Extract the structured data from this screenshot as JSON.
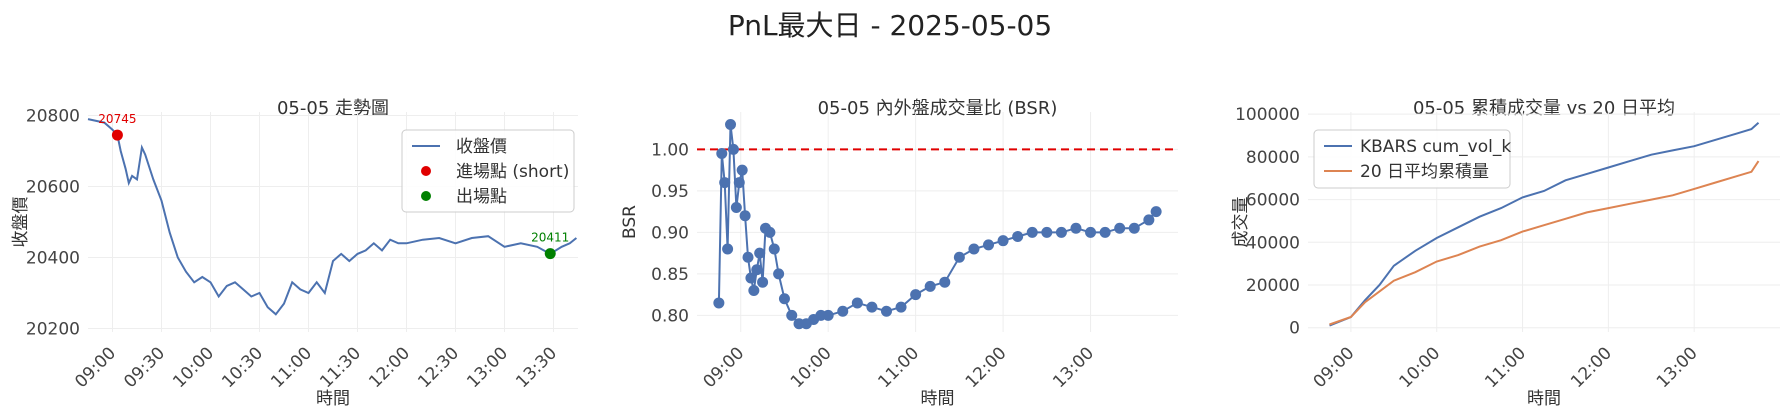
{
  "suptitle": "PnL最大日 - 2025-05-05",
  "colors": {
    "blue": "#4c72b0",
    "orange": "#dd8452",
    "red": "#e00000",
    "green": "#008000"
  },
  "chart_data": [
    {
      "type": "line",
      "title": "05-05 走勢圖",
      "xlabel": "時間",
      "ylabel": "收盤價",
      "x_range": [
        "08:45",
        "13:45"
      ],
      "ylim": [
        20190,
        20810
      ],
      "xticks": [
        "09:00",
        "09:30",
        "10:00",
        "10:30",
        "11:00",
        "11:30",
        "12:00",
        "12:30",
        "13:00",
        "13:30"
      ],
      "yticks": [
        20200,
        20400,
        20600,
        20800
      ],
      "legend": {
        "position": "top-right",
        "entries": [
          "收盤價",
          "進場點 (short)",
          "出場點"
        ]
      },
      "series": [
        {
          "name": "收盤價",
          "x": [
            "08:45",
            "08:50",
            "08:55",
            "09:00",
            "09:03",
            "09:05",
            "09:08",
            "09:10",
            "09:12",
            "09:15",
            "09:18",
            "09:20",
            "09:25",
            "09:30",
            "09:35",
            "09:40",
            "09:45",
            "09:50",
            "09:55",
            "10:00",
            "10:05",
            "10:10",
            "10:15",
            "10:20",
            "10:25",
            "10:30",
            "10:35",
            "10:40",
            "10:45",
            "10:50",
            "10:55",
            "11:00",
            "11:05",
            "11:10",
            "11:15",
            "11:20",
            "11:25",
            "11:30",
            "11:35",
            "11:40",
            "11:45",
            "11:50",
            "11:55",
            "12:00",
            "12:10",
            "12:20",
            "12:30",
            "12:40",
            "12:50",
            "13:00",
            "13:10",
            "13:20",
            "13:28",
            "13:35",
            "13:40",
            "13:44"
          ],
          "y": [
            20790,
            20785,
            20780,
            20760,
            20745,
            20700,
            20650,
            20610,
            20630,
            20620,
            20710,
            20690,
            20620,
            20560,
            20470,
            20400,
            20360,
            20330,
            20345,
            20330,
            20290,
            20320,
            20330,
            20310,
            20290,
            20300,
            20260,
            20240,
            20270,
            20330,
            20310,
            20300,
            20330,
            20300,
            20390,
            20410,
            20390,
            20410,
            20420,
            20440,
            20420,
            20450,
            20440,
            20440,
            20450,
            20455,
            20440,
            20455,
            20460,
            20430,
            20440,
            20430,
            20410,
            20430,
            20440,
            20455
          ]
        }
      ],
      "markers": [
        {
          "name": "進場點 (short)",
          "x": "09:03",
          "y": 20745,
          "label": "20745",
          "color": "#e00000"
        },
        {
          "name": "出場點",
          "x": "13:28",
          "y": 20411,
          "label": "20411",
          "color": "#008000"
        }
      ]
    },
    {
      "type": "line",
      "title": "05-05 內外盤成交量比 (BSR)",
      "xlabel": "時間",
      "ylabel": "BSR",
      "x_range": [
        "08:30",
        "14:00"
      ],
      "ylim": [
        0.78,
        1.045
      ],
      "xticks": [
        "09:00",
        "10:00",
        "11:00",
        "12:00",
        "13:00"
      ],
      "yticks": [
        0.8,
        0.85,
        0.9,
        0.95,
        1.0
      ],
      "reference_line": {
        "y": 1.0,
        "style": "dashed",
        "color": "#e00000"
      },
      "series": [
        {
          "name": "BSR",
          "x": [
            "08:45",
            "08:47",
            "08:49",
            "08:51",
            "08:53",
            "08:55",
            "08:57",
            "08:59",
            "09:01",
            "09:03",
            "09:05",
            "09:07",
            "09:09",
            "09:11",
            "09:13",
            "09:15",
            "09:17",
            "09:20",
            "09:23",
            "09:26",
            "09:30",
            "09:35",
            "09:40",
            "09:45",
            "09:50",
            "09:55",
            "10:00",
            "10:10",
            "10:20",
            "10:30",
            "10:40",
            "10:50",
            "11:00",
            "11:10",
            "11:20",
            "11:30",
            "11:40",
            "11:50",
            "12:00",
            "12:10",
            "12:20",
            "12:30",
            "12:40",
            "12:50",
            "13:00",
            "13:10",
            "13:20",
            "13:30",
            "13:40",
            "13:45"
          ],
          "y": [
            0.815,
            0.995,
            0.96,
            0.88,
            1.03,
            1.0,
            0.93,
            0.96,
            0.975,
            0.92,
            0.87,
            0.845,
            0.83,
            0.855,
            0.875,
            0.84,
            0.905,
            0.9,
            0.88,
            0.85,
            0.82,
            0.8,
            0.79,
            0.79,
            0.795,
            0.8,
            0.8,
            0.805,
            0.815,
            0.81,
            0.805,
            0.81,
            0.825,
            0.835,
            0.84,
            0.87,
            0.88,
            0.885,
            0.89,
            0.895,
            0.9,
            0.9,
            0.9,
            0.905,
            0.9,
            0.9,
            0.905,
            0.905,
            0.915,
            0.925
          ]
        }
      ]
    },
    {
      "type": "line",
      "title": "05-05 累積成交量 vs 20 日平均",
      "xlabel": "時間",
      "ylabel": "成交量",
      "x_range": [
        "08:30",
        "14:00"
      ],
      "ylim": [
        -2000,
        101000
      ],
      "xticks": [
        "09:00",
        "10:00",
        "11:00",
        "12:00",
        "13:00"
      ],
      "yticks": [
        0,
        20000,
        40000,
        60000,
        80000,
        100000
      ],
      "legend": {
        "position": "top-left",
        "entries": [
          "KBARS cum_vol_k",
          "20 日平均累積量"
        ]
      },
      "series": [
        {
          "name": "KBARS cum_vol_k",
          "x": [
            "08:45",
            "09:00",
            "09:10",
            "09:20",
            "09:30",
            "09:45",
            "10:00",
            "10:15",
            "10:30",
            "10:45",
            "11:00",
            "11:15",
            "11:30",
            "11:45",
            "12:00",
            "12:15",
            "12:30",
            "12:45",
            "13:00",
            "13:15",
            "13:30",
            "13:40",
            "13:45"
          ],
          "y": [
            1000,
            5000,
            13000,
            20000,
            29000,
            36000,
            42000,
            47000,
            52000,
            56000,
            61000,
            64000,
            69000,
            72000,
            75000,
            78000,
            81000,
            83000,
            85000,
            88000,
            91000,
            93000,
            96000
          ]
        },
        {
          "name": "20 日平均累積量",
          "x": [
            "08:45",
            "09:00",
            "09:10",
            "09:20",
            "09:30",
            "09:45",
            "10:00",
            "10:15",
            "10:30",
            "10:45",
            "11:00",
            "11:15",
            "11:30",
            "11:45",
            "12:00",
            "12:15",
            "12:30",
            "12:45",
            "13:00",
            "13:15",
            "13:30",
            "13:40",
            "13:45"
          ],
          "y": [
            1500,
            5000,
            12000,
            17000,
            22000,
            26000,
            31000,
            34000,
            38000,
            41000,
            45000,
            48000,
            51000,
            54000,
            56000,
            58000,
            60000,
            62000,
            65000,
            68000,
            71000,
            73000,
            78000
          ]
        }
      ]
    }
  ]
}
